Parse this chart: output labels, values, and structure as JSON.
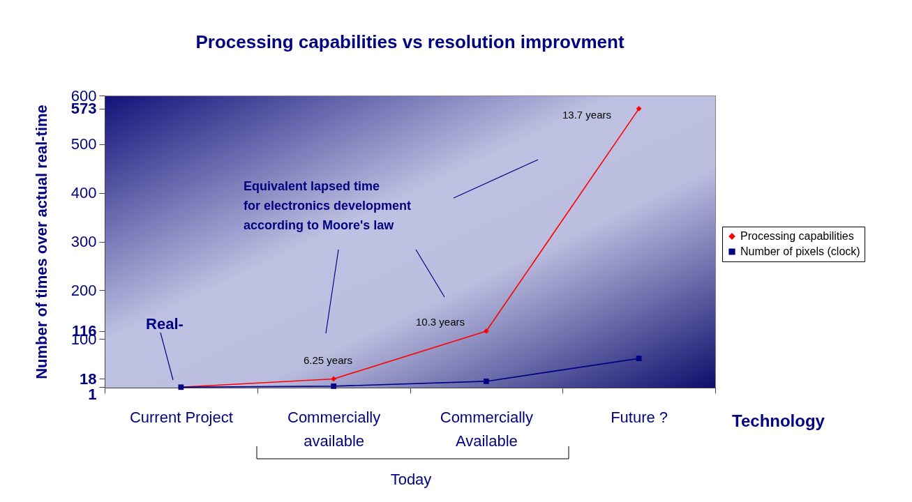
{
  "chart_data": {
    "type": "line",
    "title": "Processing capabilities vs resolution improvment",
    "xlabel": "Technology",
    "ylabel": "Number of times over actual real-time",
    "categories": [
      "Current Project",
      "Commercially available",
      "Commercially Available",
      "Future ?"
    ],
    "series": [
      {
        "name": "Processing capabilities",
        "color": "#ff0000",
        "marker": "diamond",
        "values": [
          1,
          18,
          116,
          573
        ]
      },
      {
        "name": "Number of pixels (clock)",
        "color": "#000080",
        "marker": "square",
        "values": [
          1,
          3,
          13,
          60
        ]
      }
    ],
    "ylim": [
      0,
      600
    ],
    "yticks": [
      1,
      18,
      100,
      116,
      200,
      300,
      400,
      500,
      573,
      600
    ],
    "grid": false,
    "legend": "right",
    "line_style": "solid",
    "annotations": [
      "Real-",
      "6.25 years",
      "10.3 years",
      "13.7 years",
      "Equivalent lapsed time\nfor electronics development\naccording to Moore's law",
      "Today"
    ]
  }
}
